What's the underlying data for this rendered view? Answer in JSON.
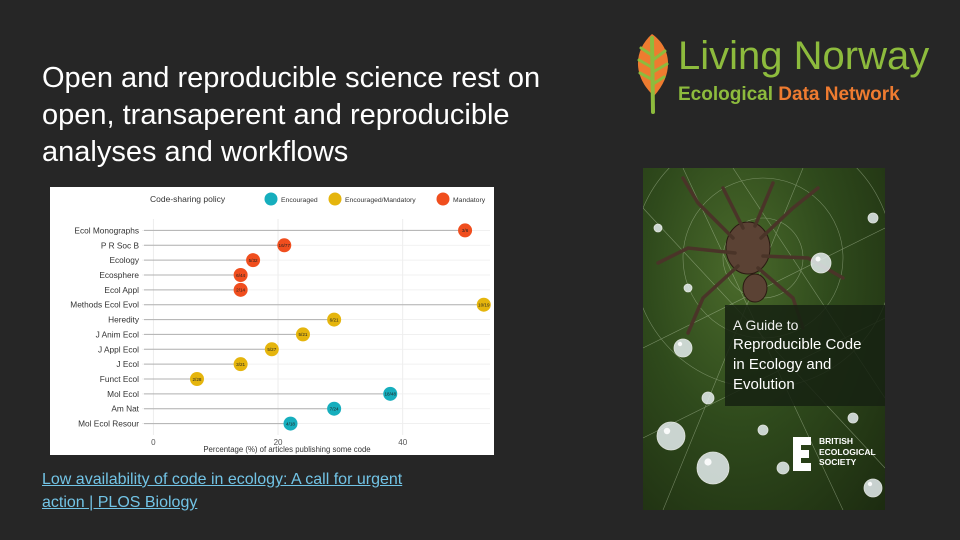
{
  "slide": {
    "title_lines": [
      "Open and reproducible science rest on",
      "open, transaperent and reproducible",
      "analyses and workflows"
    ],
    "link_lines": [
      "Low availability of code in ecology: A call for urgent",
      "action | PLOS Biology"
    ]
  },
  "logo": {
    "line1": "Living Norway",
    "line2_a": "Ecological",
    "line2_b": " Data Network",
    "leaf_color": "#8dbb3d",
    "accent_color": "#ee7b30"
  },
  "book": {
    "title_lines": [
      "A Guide to",
      "Reproducible Code",
      "in Ecology and",
      "Evolution"
    ],
    "publisher_lines": [
      "BRITISH",
      "ECOLOGICAL",
      "SOCIETY"
    ]
  },
  "chart_data": {
    "type": "scatter",
    "subtype": "lollipop",
    "legend_title": "Code-sharing policy",
    "legend": [
      {
        "name": "Encouraged",
        "color": "#16aebd"
      },
      {
        "name": "Encouraged/Mandatory",
        "color": "#e5b50d"
      },
      {
        "name": "Mandatory",
        "color": "#f04e1e"
      }
    ],
    "xlabel": "Percentage (%) of articles publishing some code",
    "xlim": [
      -1.5,
      54
    ],
    "xticks": [
      0,
      20,
      40
    ],
    "journals": [
      {
        "name": "Ecol Monographs",
        "value": 50,
        "label": "3/6",
        "policy": "Mandatory"
      },
      {
        "name": "P R Soc B",
        "value": 21,
        "label": "16/77",
        "policy": "Mandatory"
      },
      {
        "name": "Ecology",
        "value": 16,
        "label": "5/32",
        "policy": "Mandatory"
      },
      {
        "name": "Ecosphere",
        "value": 14,
        "label": "6/44",
        "policy": "Mandatory"
      },
      {
        "name": "Ecol Appl",
        "value": 14,
        "label": "2/14",
        "policy": "Mandatory"
      },
      {
        "name": "Methods Ecol Evol",
        "value": 53,
        "label": "10/19",
        "policy": "Encouraged/Mandatory"
      },
      {
        "name": "Heredity",
        "value": 29,
        "label": "6/21",
        "policy": "Encouraged/Mandatory"
      },
      {
        "name": "J Anim Ecol",
        "value": 24,
        "label": "5/21",
        "policy": "Encouraged/Mandatory"
      },
      {
        "name": "J Appl Ecol",
        "value": 19,
        "label": "5/27",
        "policy": "Encouraged/Mandatory"
      },
      {
        "name": "J Ecol",
        "value": 14,
        "label": "3/21",
        "policy": "Encouraged/Mandatory"
      },
      {
        "name": "Funct Ecol",
        "value": 7,
        "label": "2/28",
        "policy": "Encouraged/Mandatory"
      },
      {
        "name": "Mol Ecol",
        "value": 38,
        "label": "18/48",
        "policy": "Encouraged"
      },
      {
        "name": "Am Nat",
        "value": 29,
        "label": "7/24",
        "policy": "Encouraged"
      },
      {
        "name": "Mol Ecol Resour",
        "value": 22,
        "label": "4/18",
        "policy": "Encouraged"
      }
    ]
  }
}
